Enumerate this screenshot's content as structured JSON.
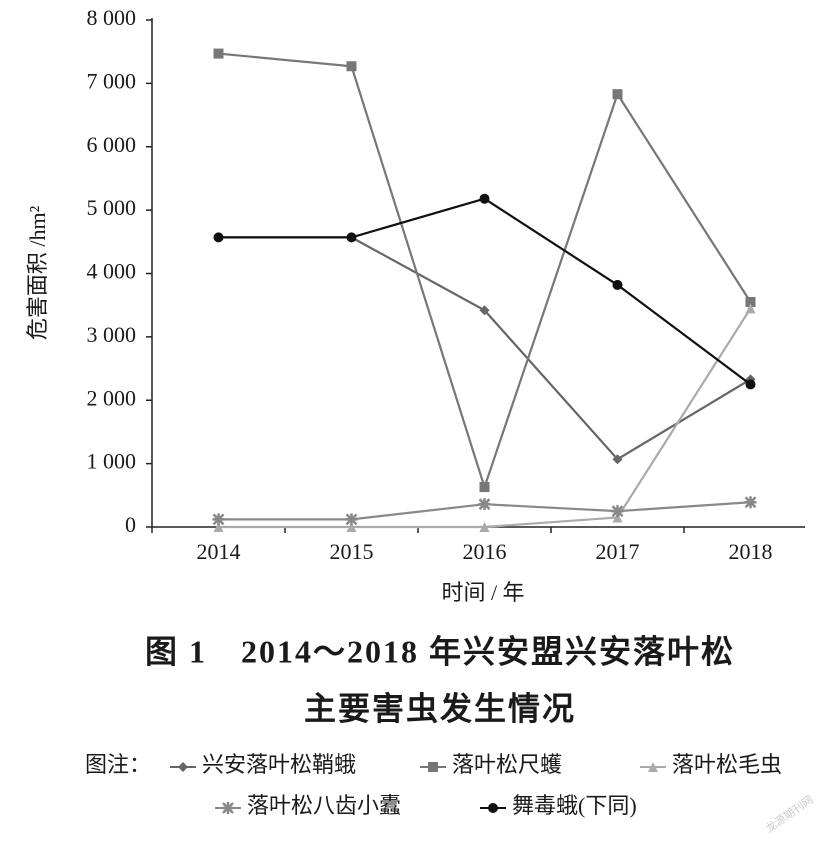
{
  "chart_data": {
    "type": "line",
    "title_lines": [
      "图 1　2014～2018 年兴安盟兴安落叶松",
      "主要害虫发生情况"
    ],
    "xlabel": "时间 / 年",
    "ylabel": "危害面积 /hm²",
    "categories": [
      "2014",
      "2015",
      "2016",
      "2017",
      "2018"
    ],
    "ylim": [
      0,
      8000
    ],
    "yticks": [
      0,
      {
        "value": 1000,
        "label": "1 000"
      },
      {
        "value": 2000,
        "label": "2 000"
      },
      {
        "value": 3000,
        "label": "3 000"
      },
      {
        "value": 4000,
        "label": "4 000"
      },
      {
        "value": 5000,
        "label": "5 000"
      },
      {
        "value": 6000,
        "label": "6 000"
      },
      {
        "value": 7000,
        "label": "7 000"
      },
      {
        "value": 8000,
        "label": "8 000"
      }
    ],
    "grid": false,
    "legend_title": "图注：",
    "series": [
      {
        "name": "兴安落叶松鞘蛾",
        "color": "#666666",
        "marker": "diamond",
        "values": [
          4570,
          4570,
          3420,
          1070,
          2330
        ]
      },
      {
        "name": "落叶松尺蠖",
        "color": "#777777",
        "marker": "square",
        "values": [
          7470,
          7270,
          630,
          6830,
          3550
        ]
      },
      {
        "name": "落叶松毛虫",
        "color": "#aaaaaa",
        "marker": "triangle",
        "values": [
          0,
          0,
          0,
          150,
          3450
        ]
      },
      {
        "name": "落叶松八齿小蠹",
        "color": "#888888",
        "marker": "star",
        "values": [
          120,
          120,
          360,
          250,
          390
        ]
      },
      {
        "name": "舞毒蛾(下同)",
        "color": "#111111",
        "marker": "circle",
        "values": [
          4570,
          4570,
          5180,
          3820,
          2250
        ]
      }
    ],
    "watermark": "龙源期刊网"
  }
}
